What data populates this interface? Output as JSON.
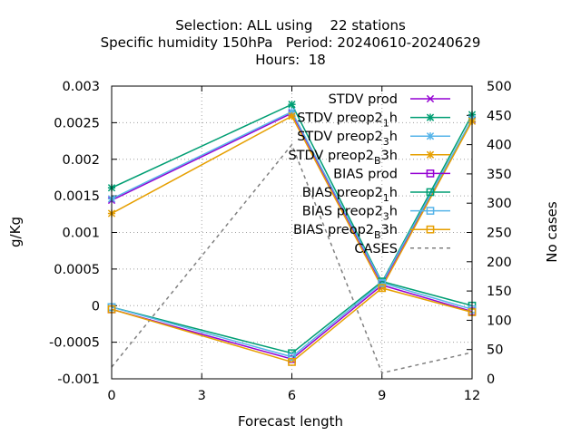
{
  "chart_data": {
    "type": "line",
    "title_lines": [
      "Selection: ALL using    22 stations",
      "Specific humidity 150hPa   Period: 20240610-20240629",
      "Hours:  18"
    ],
    "xlabel": "Forecast length",
    "ylabel": "g/Kg",
    "y2label": "No cases",
    "x": [
      0,
      6,
      9,
      12
    ],
    "x_ticks": [
      0,
      3,
      6,
      9,
      12
    ],
    "xlim": [
      0,
      12
    ],
    "ylim": [
      -0.001,
      0.003
    ],
    "y_ticks": [
      "-0.001",
      "-0.0005",
      "0",
      "0.0005",
      "0.001",
      "0.0015",
      "0.002",
      "0.0025",
      "0.003"
    ],
    "y2lim": [
      0,
      500
    ],
    "y2_ticks": [
      "0",
      "50",
      "100",
      "150",
      "200",
      "250",
      "300",
      "350",
      "400",
      "450",
      "500"
    ],
    "grid": true,
    "legend_position": "top-right",
    "series": [
      {
        "name": "STDV prod",
        "label_base": "STDV prod",
        "color": "#9400d3",
        "marker": "x",
        "values": [
          0.00144,
          0.00263,
          0.00029,
          0.00254
        ]
      },
      {
        "name": "STDV preop2_1h",
        "label_base": "STDV preop2",
        "sub": "1",
        "label_tail": "h",
        "color": "#009e73",
        "marker": "star",
        "values": [
          0.00161,
          0.00275,
          0.00032,
          0.00261
        ]
      },
      {
        "name": "STDV preop2_3h",
        "label_base": "STDV preop2",
        "sub": "3",
        "label_tail": "h",
        "color": "#56b4e9",
        "marker": "star",
        "values": [
          0.00146,
          0.00265,
          0.00031,
          0.00255
        ]
      },
      {
        "name": "STDV preop2_B3h",
        "label_base": "STDV preop2",
        "sub": "B",
        "label_tail": "3h",
        "color": "#e69f00",
        "marker": "star",
        "values": [
          0.00126,
          0.00259,
          0.00025,
          0.00252
        ]
      },
      {
        "name": "BIAS prod",
        "label_base": "BIAS prod",
        "color": "#9400d3",
        "marker": "box",
        "values": [
          -5e-05,
          -0.00073,
          0.00028,
          -8e-05
        ]
      },
      {
        "name": "BIAS preop2_1h",
        "label_base": "BIAS preop2",
        "sub": "1",
        "label_tail": "h",
        "color": "#009e73",
        "marker": "box",
        "values": [
          -2e-05,
          -0.00065,
          0.00033,
          0.0
        ]
      },
      {
        "name": "BIAS preop2_3h",
        "label_base": "BIAS preop2",
        "sub": "3",
        "label_tail": "h",
        "color": "#56b4e9",
        "marker": "box",
        "values": [
          -2e-05,
          -0.0007,
          0.00031,
          -5e-05
        ]
      },
      {
        "name": "BIAS preop2_B3h",
        "label_base": "BIAS preop2",
        "sub": "B",
        "label_tail": "3h",
        "color": "#e69f00",
        "marker": "box",
        "values": [
          -5e-05,
          -0.00077,
          0.00024,
          -9e-05
        ]
      }
    ],
    "cases": {
      "name": "CASES",
      "label_base": "CASES",
      "color": "#808080",
      "axis": "y2",
      "values": [
        20,
        400,
        10,
        45
      ]
    }
  }
}
